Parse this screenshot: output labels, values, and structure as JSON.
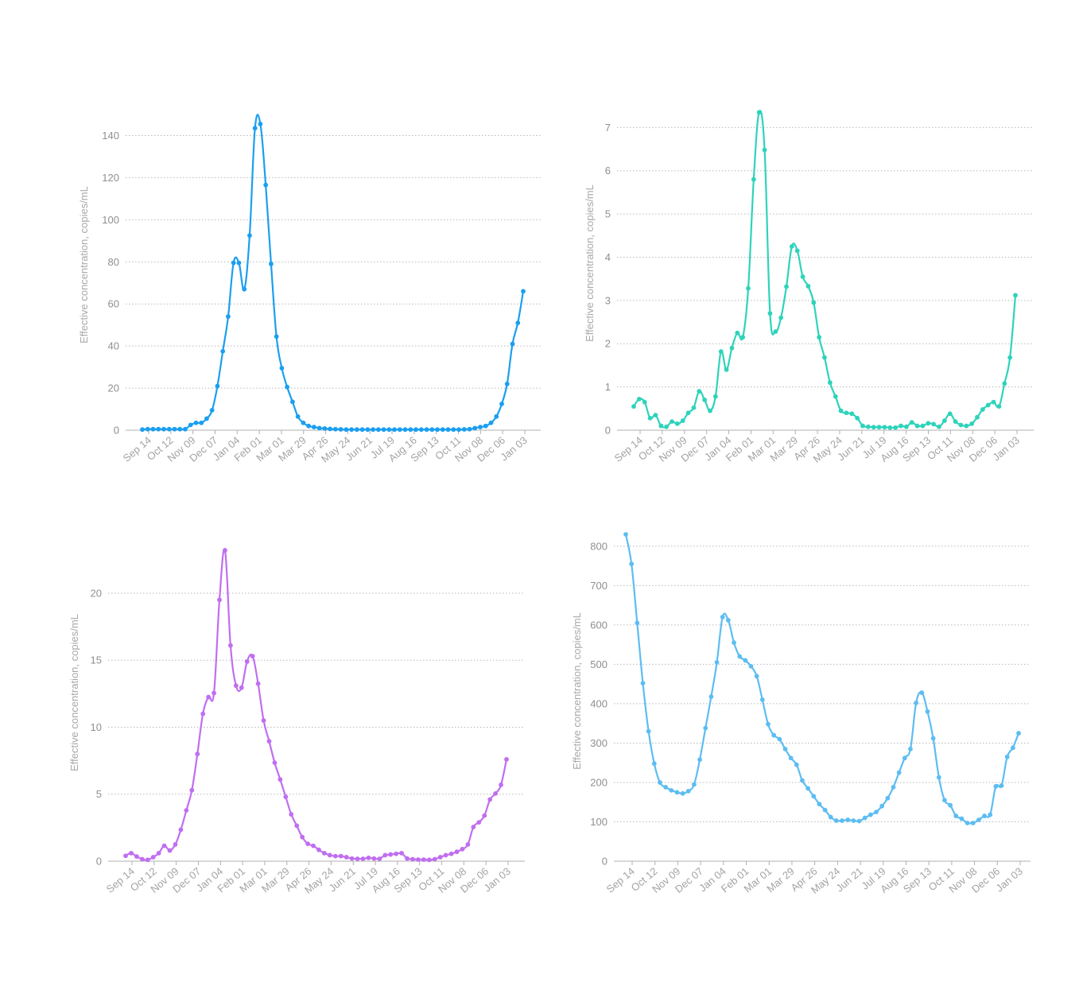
{
  "chart_data": [
    {
      "type": "line",
      "ylabel": "Effective concentration, copies/mL",
      "xlabel": "",
      "yticks": [
        0,
        20,
        40,
        60,
        80,
        100,
        120,
        140
      ],
      "ylim": [
        0,
        150
      ],
      "grid": true,
      "color": "#1a9ff0",
      "x_tick_labels": [
        "Sep 14",
        "Oct 12",
        "Nov 09",
        "Dec 07",
        "Jan 04",
        "Feb 01",
        "Mar 01",
        "Mar 29",
        "Apr 26",
        "May 24",
        "Jun 21",
        "Jul 19",
        "Aug 16",
        "Sep 13",
        "Oct 11",
        "Nov 08",
        "Dec 06",
        "Jan 03"
      ],
      "series": [
        {
          "values": [
            0.3,
            0.5,
            0.5,
            0.5,
            0.5,
            0.5,
            0.5,
            0.5,
            0.5,
            2.5,
            3.5,
            3.5,
            5.5,
            9.5,
            21,
            37.5,
            54,
            79.5,
            79.5,
            67,
            92.5,
            143.5,
            145.5,
            116.5,
            79,
            44.5,
            29.5,
            20.5,
            13.5,
            6.5,
            3.5,
            2,
            1.5,
            1,
            0.8,
            0.6,
            0.5,
            0.4,
            0.3,
            0.3,
            0.3,
            0.3,
            0.3,
            0.3,
            0.3,
            0.3,
            0.3,
            0.3,
            0.3,
            0.3,
            0.3,
            0.3,
            0.3,
            0.3,
            0.3,
            0.3,
            0.3,
            0.3,
            0.3,
            0.3,
            0.4,
            0.5,
            1,
            1.5,
            2,
            3.5,
            6.5,
            12.5,
            22,
            41,
            51,
            66
          ]
        }
      ]
    },
    {
      "type": "line",
      "ylabel": "Effective concentration, copies/mL",
      "xlabel": "",
      "yticks": [
        0,
        1,
        2,
        3,
        4,
        5,
        6,
        7
      ],
      "ylim": [
        0,
        7.3
      ],
      "grid": true,
      "color": "#2ed3bb",
      "x_tick_labels": [
        "Sep 14",
        "Oct 12",
        "Nov 09",
        "Dec 07",
        "Jan 04",
        "Feb 01",
        "Mar 01",
        "Mar 29",
        "Apr 26",
        "May 24",
        "Jun 21",
        "Jul 19",
        "Aug 16",
        "Sep 13",
        "Oct 11",
        "Nov 08",
        "Dec 06",
        "Jan 03"
      ],
      "series": [
        {
          "values": [
            0.55,
            0.72,
            0.65,
            0.28,
            0.35,
            0.1,
            0.08,
            0.2,
            0.15,
            0.22,
            0.4,
            0.52,
            0.9,
            0.7,
            0.45,
            0.78,
            1.82,
            1.4,
            1.9,
            2.25,
            2.15,
            3.28,
            5.8,
            7.35,
            6.48,
            2.7,
            2.28,
            2.6,
            3.32,
            4.25,
            4.15,
            3.55,
            3.33,
            2.95,
            2.15,
            1.68,
            1.1,
            0.78,
            0.45,
            0.4,
            0.38,
            0.28,
            0.1,
            0.08,
            0.07,
            0.07,
            0.07,
            0.06,
            0.06,
            0.1,
            0.08,
            0.18,
            0.1,
            0.1,
            0.16,
            0.14,
            0.08,
            0.22,
            0.38,
            0.2,
            0.12,
            0.1,
            0.15,
            0.3,
            0.48,
            0.58,
            0.65,
            0.55,
            1.08,
            1.68,
            3.12
          ]
        }
      ]
    },
    {
      "type": "line",
      "ylabel": "Effective concentration, copies/mL",
      "xlabel": "",
      "yticks": [
        0,
        5,
        10,
        15,
        20
      ],
      "ylim": [
        0,
        23.5
      ],
      "grid": true,
      "color": "#c06ef0",
      "x_tick_labels": [
        "Sep 14",
        "Oct 12",
        "Nov 09",
        "Dec 07",
        "Jan 04",
        "Feb 01",
        "Mar 01",
        "Mar 29",
        "Apr 26",
        "May 24",
        "Jun 21",
        "Jul 19",
        "Aug 16",
        "Sep 13",
        "Oct 11",
        "Nov 08",
        "Dec 06",
        "Jan 03"
      ],
      "series": [
        {
          "values": [
            0.4,
            0.6,
            0.35,
            0.15,
            0.1,
            0.3,
            0.6,
            1.15,
            0.8,
            1.25,
            2.35,
            3.8,
            5.3,
            8,
            11,
            12.25,
            12.55,
            19.5,
            23.2,
            16.1,
            13.1,
            12.95,
            14.9,
            15.3,
            13.25,
            10.5,
            8.95,
            7.35,
            6.1,
            4.8,
            3.5,
            2.65,
            1.8,
            1.3,
            1.15,
            0.85,
            0.6,
            0.45,
            0.38,
            0.38,
            0.3,
            0.2,
            0.18,
            0.18,
            0.25,
            0.2,
            0.18,
            0.45,
            0.5,
            0.55,
            0.6,
            0.2,
            0.15,
            0.12,
            0.12,
            0.1,
            0.15,
            0.3,
            0.45,
            0.55,
            0.7,
            0.9,
            1.25,
            2.55,
            2.9,
            3.4,
            4.6,
            5.05,
            5.7,
            7.6
          ]
        }
      ]
    },
    {
      "type": "line",
      "ylabel": "Effective concentration, copies/mL",
      "xlabel": "",
      "yticks": [
        0,
        100,
        200,
        300,
        400,
        500,
        600,
        700,
        800
      ],
      "ylim": [
        0,
        830
      ],
      "grid": true,
      "color": "#5cbdf2",
      "x_tick_labels": [
        "Sep 14",
        "Oct 12",
        "Nov 09",
        "Dec 07",
        "Jan 04",
        "Feb 01",
        "Mar 01",
        "Mar 29",
        "Apr 26",
        "May 24",
        "Jun 21",
        "Jul 19",
        "Aug 16",
        "Sep 13",
        "Oct 11",
        "Nov 08",
        "Dec 06",
        "Jan 03"
      ],
      "series": [
        {
          "values": [
            830,
            755,
            605,
            452,
            330,
            248,
            200,
            188,
            180,
            175,
            172,
            178,
            195,
            258,
            338,
            418,
            505,
            620,
            612,
            555,
            520,
            510,
            495,
            470,
            410,
            348,
            320,
            310,
            285,
            262,
            245,
            205,
            185,
            165,
            145,
            130,
            112,
            103,
            103,
            105,
            103,
            102,
            110,
            118,
            125,
            140,
            160,
            188,
            225,
            262,
            285,
            402,
            428,
            380,
            312,
            213,
            155,
            142,
            115,
            108,
            97,
            97,
            105,
            115,
            118,
            190,
            192,
            265,
            288,
            325
          ]
        }
      ]
    }
  ]
}
